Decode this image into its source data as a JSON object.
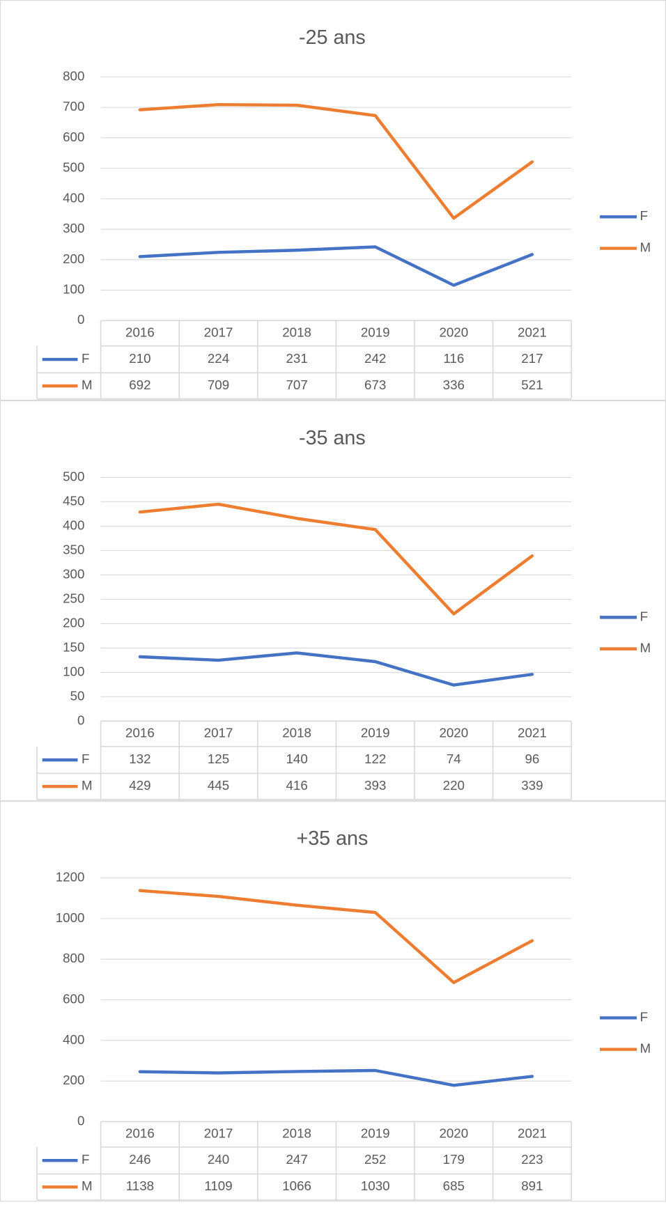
{
  "chart_data": [
    {
      "type": "line",
      "title": "-25 ans",
      "categories": [
        "2016",
        "2017",
        "2018",
        "2019",
        "2020",
        "2021"
      ],
      "series": [
        {
          "name": "F",
          "color": "#4472c4",
          "values": [
            210,
            224,
            231,
            242,
            116,
            217
          ]
        },
        {
          "name": "M",
          "color": "#ed7d31",
          "values": [
            692,
            709,
            707,
            673,
            336,
            521
          ]
        }
      ],
      "ylim": [
        0,
        800
      ],
      "yticks": [
        0,
        100,
        200,
        300,
        400,
        500,
        600,
        700,
        800
      ],
      "grid": true,
      "legend": "right",
      "data_table": true
    },
    {
      "type": "line",
      "title": "-35 ans",
      "categories": [
        "2016",
        "2017",
        "2018",
        "2019",
        "2020",
        "2021"
      ],
      "series": [
        {
          "name": "F",
          "color": "#4472c4",
          "values": [
            132,
            125,
            140,
            122,
            74,
            96
          ]
        },
        {
          "name": "M",
          "color": "#ed7d31",
          "values": [
            429,
            445,
            416,
            393,
            220,
            339
          ]
        }
      ],
      "ylim": [
        0,
        500
      ],
      "yticks": [
        0,
        50,
        100,
        150,
        200,
        250,
        300,
        350,
        400,
        450,
        500
      ],
      "grid": true,
      "legend": "right",
      "data_table": true
    },
    {
      "type": "line",
      "title": "+35 ans",
      "categories": [
        "2016",
        "2017",
        "2018",
        "2019",
        "2020",
        "2021"
      ],
      "series": [
        {
          "name": "F",
          "color": "#4472c4",
          "values": [
            246,
            240,
            247,
            252,
            179,
            223
          ]
        },
        {
          "name": "M",
          "color": "#ed7d31",
          "values": [
            1138,
            1109,
            1066,
            1030,
            685,
            891
          ]
        }
      ],
      "ylim": [
        0,
        1200
      ],
      "yticks": [
        0,
        200,
        400,
        600,
        800,
        1000,
        1200
      ],
      "grid": true,
      "legend": "right",
      "data_table": true
    }
  ]
}
